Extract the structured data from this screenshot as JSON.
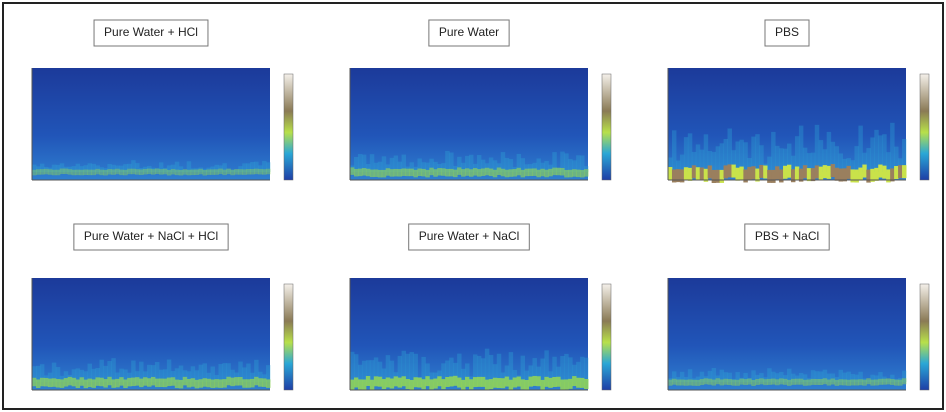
{
  "figure": {
    "panels": [
      {
        "title": "Pure Water + HCl"
      },
      {
        "title": "Pure Water"
      },
      {
        "title": "PBS"
      },
      {
        "title": "Pure Water + NaCl + HCl"
      },
      {
        "title": "Pure Water + NaCl"
      },
      {
        "title": "PBS + NaCl"
      }
    ]
  }
}
